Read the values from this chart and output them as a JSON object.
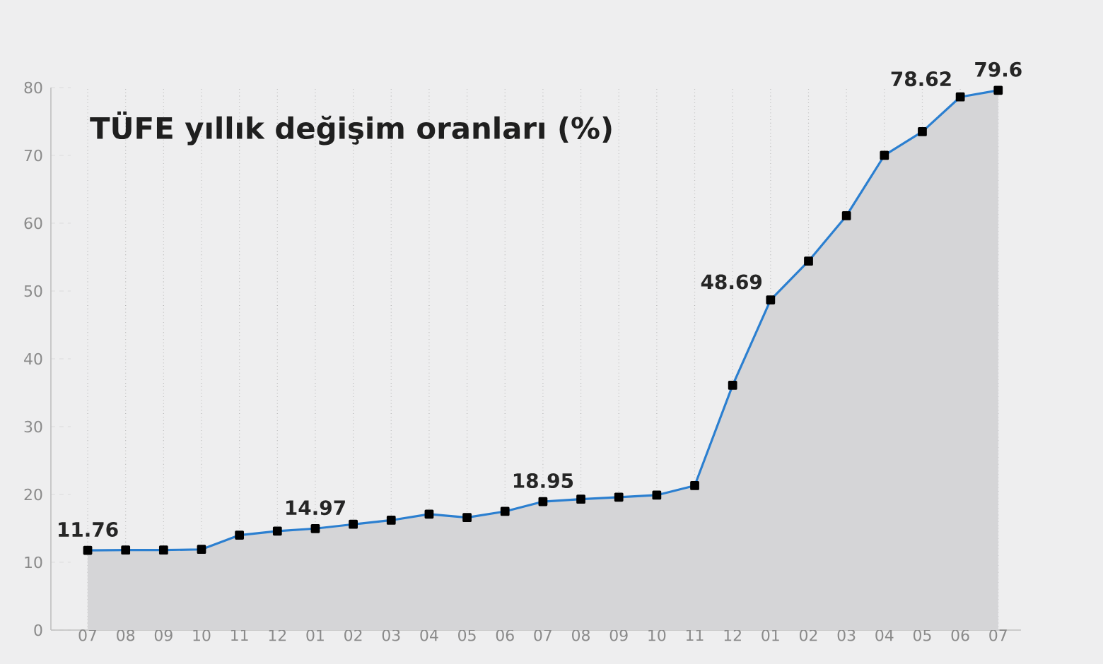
{
  "chart_data": {
    "type": "area",
    "title": "TÜFE yıllık değişim oranları (%)",
    "categories": [
      "07",
      "08",
      "09",
      "10",
      "11",
      "12",
      "01",
      "02",
      "03",
      "04",
      "05",
      "06",
      "07",
      "08",
      "09",
      "10",
      "11",
      "12",
      "01",
      "02",
      "03",
      "04",
      "05",
      "06",
      "07"
    ],
    "values": [
      11.76,
      11.8,
      11.8,
      11.9,
      14.0,
      14.6,
      14.97,
      15.6,
      16.2,
      17.1,
      16.6,
      17.5,
      18.95,
      19.3,
      19.6,
      19.9,
      21.3,
      36.1,
      48.69,
      54.4,
      61.1,
      70.0,
      73.5,
      78.62,
      79.6
    ],
    "value_labels": [
      "11.76",
      null,
      null,
      null,
      null,
      null,
      "14.97",
      null,
      null,
      null,
      null,
      null,
      "18.95",
      null,
      null,
      null,
      null,
      null,
      "48.69",
      null,
      null,
      null,
      null,
      "78.62",
      "79.6"
    ],
    "color": "#2b7fd0",
    "ylim": [
      0,
      80
    ],
    "yticks": [
      0,
      10,
      20,
      30,
      40,
      50,
      60,
      70,
      80
    ],
    "grid": "x",
    "marker": "square",
    "line_style": "solid"
  }
}
